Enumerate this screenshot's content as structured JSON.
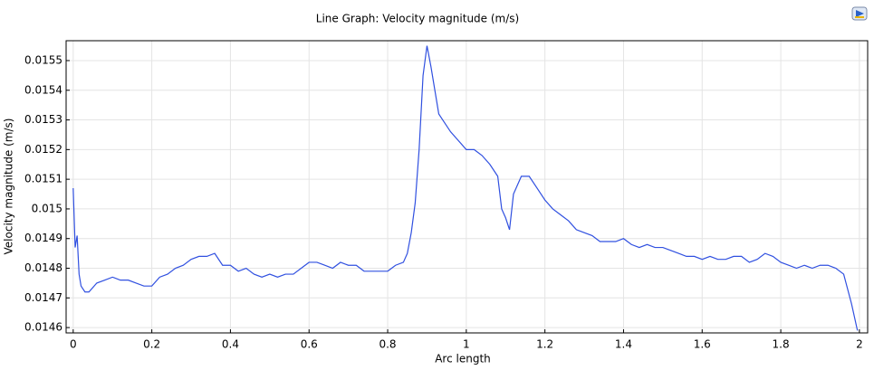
{
  "chart_data": {
    "type": "line",
    "title": "Line Graph: Velocity magnitude (m/s)",
    "x_label": "Arc length",
    "y_label": "Velocity magnitude (m/s)",
    "xlim": [
      -0.018,
      2.021
    ],
    "ylim": [
      0.014582,
      0.015567
    ],
    "xticks": [
      0,
      0.2,
      0.4,
      0.6,
      0.8,
      1,
      1.2,
      1.4,
      1.6,
      1.8,
      2
    ],
    "yticks": [
      0.0146,
      0.0147,
      0.0148,
      0.0149,
      0.015,
      0.0151,
      0.0152,
      0.0153,
      0.0154,
      0.0155
    ],
    "grid": true,
    "series": [
      {
        "color": "#3050e0",
        "x": [
          0,
          0.005,
          0.01,
          0.015,
          0.02,
          0.03,
          0.04,
          0.06,
          0.08,
          0.1,
          0.12,
          0.14,
          0.16,
          0.18,
          0.2,
          0.22,
          0.24,
          0.26,
          0.28,
          0.3,
          0.32,
          0.34,
          0.36,
          0.38,
          0.4,
          0.42,
          0.44,
          0.46,
          0.48,
          0.5,
          0.52,
          0.54,
          0.56,
          0.58,
          0.6,
          0.62,
          0.64,
          0.66,
          0.68,
          0.7,
          0.72,
          0.74,
          0.76,
          0.78,
          0.8,
          0.82,
          0.84,
          0.85,
          0.86,
          0.87,
          0.88,
          0.89,
          0.9,
          0.91,
          0.92,
          0.93,
          0.94,
          0.96,
          0.98,
          1.0,
          1.02,
          1.04,
          1.06,
          1.08,
          1.09,
          1.1,
          1.11,
          1.12,
          1.14,
          1.16,
          1.18,
          1.2,
          1.22,
          1.24,
          1.26,
          1.28,
          1.3,
          1.32,
          1.34,
          1.36,
          1.38,
          1.4,
          1.42,
          1.44,
          1.46,
          1.48,
          1.5,
          1.52,
          1.54,
          1.56,
          1.58,
          1.6,
          1.62,
          1.64,
          1.66,
          1.68,
          1.7,
          1.72,
          1.74,
          1.76,
          1.78,
          1.8,
          1.82,
          1.84,
          1.86,
          1.88,
          1.9,
          1.92,
          1.94,
          1.96,
          1.97,
          1.98,
          1.99,
          1.995
        ],
        "values": [
          0.01507,
          0.01487,
          0.01491,
          0.01478,
          0.01474,
          0.01472,
          0.01472,
          0.01475,
          0.01476,
          0.01477,
          0.01476,
          0.01476,
          0.01475,
          0.01474,
          0.01474,
          0.01477,
          0.01478,
          0.0148,
          0.01481,
          0.01483,
          0.01484,
          0.01484,
          0.01485,
          0.01481,
          0.01481,
          0.01479,
          0.0148,
          0.01478,
          0.01477,
          0.01478,
          0.01477,
          0.01478,
          0.01478,
          0.0148,
          0.01482,
          0.01482,
          0.01481,
          0.0148,
          0.01482,
          0.01481,
          0.01481,
          0.01479,
          0.01479,
          0.01479,
          0.01479,
          0.01481,
          0.01482,
          0.01485,
          0.01492,
          0.01502,
          0.0152,
          0.01545,
          0.01555,
          0.01548,
          0.0154,
          0.01532,
          0.0153,
          0.01526,
          0.01523,
          0.0152,
          0.0152,
          0.01518,
          0.01515,
          0.01511,
          0.015,
          0.01497,
          0.01493,
          0.01505,
          0.01511,
          0.01511,
          0.01507,
          0.01503,
          0.015,
          0.01498,
          0.01496,
          0.01493,
          0.01492,
          0.01491,
          0.01489,
          0.01489,
          0.01489,
          0.0149,
          0.01488,
          0.01487,
          0.01488,
          0.01487,
          0.01487,
          0.01486,
          0.01485,
          0.01484,
          0.01484,
          0.01483,
          0.01484,
          0.01483,
          0.01483,
          0.01484,
          0.01484,
          0.01482,
          0.01483,
          0.01485,
          0.01484,
          0.01482,
          0.01481,
          0.0148,
          0.01481,
          0.0148,
          0.01481,
          0.01481,
          0.0148,
          0.01478,
          0.01473,
          0.01468,
          0.01462,
          0.01459
        ]
      }
    ]
  }
}
